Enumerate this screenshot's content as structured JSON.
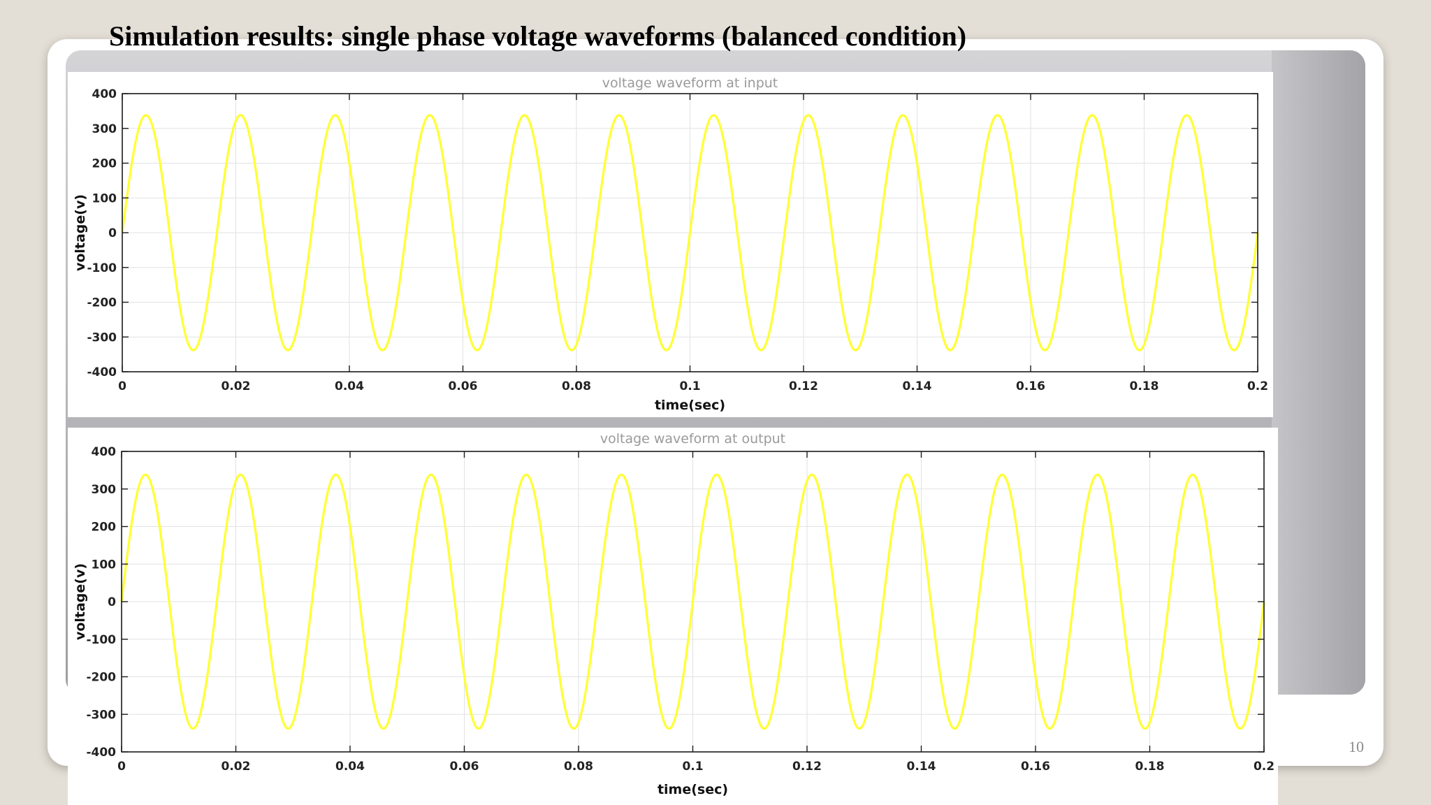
{
  "slide": {
    "title": "Simulation results: single phase voltage waveforms (balanced condition)",
    "page_number": "10"
  },
  "colors": {
    "waveform": "#ffff33",
    "grid": "#e2e2e2",
    "axes": "#1a1a1a"
  },
  "chart_data": [
    {
      "type": "line",
      "title": "voltage waveform at input",
      "xlabel": "time(sec)",
      "ylabel": "voltage(v)",
      "xlim": [
        0,
        0.2
      ],
      "ylim": [
        -400,
        400
      ],
      "x_ticks": [
        0,
        0.02,
        0.04,
        0.06,
        0.08,
        0.1,
        0.12,
        0.14,
        0.16,
        0.18,
        0.2
      ],
      "x_tick_labels": [
        "0",
        "0.02",
        "0.04",
        "0.06",
        "0.08",
        "0.1",
        "0.12",
        "0.14",
        "0.16",
        "0.18",
        "0.2"
      ],
      "y_ticks": [
        400,
        300,
        200,
        100,
        0,
        -100,
        -200,
        -300,
        -400
      ],
      "y_tick_labels": [
        "400",
        "300",
        "200",
        "100",
        "0",
        "-100",
        "-200",
        "-300",
        "-400"
      ],
      "grid": true,
      "series": [
        {
          "amplitude": 338,
          "frequency_hz": 60,
          "phase_deg": 0,
          "color": "#ffff33"
        }
      ]
    },
    {
      "type": "line",
      "title": "voltage waveform at output",
      "xlabel": "time(sec)",
      "ylabel": "voltage(v)",
      "xlim": [
        0,
        0.2
      ],
      "ylim": [
        -400,
        400
      ],
      "x_ticks": [
        0,
        0.02,
        0.04,
        0.06,
        0.08,
        0.1,
        0.12,
        0.14,
        0.16,
        0.18,
        0.2
      ],
      "x_tick_labels": [
        "0",
        "0.02",
        "0.04",
        "0.06",
        "0.08",
        "0.1",
        "0.12",
        "0.14",
        "0.16",
        "0.18",
        "0.2"
      ],
      "y_ticks": [
        400,
        300,
        200,
        100,
        0,
        -100,
        -200,
        -300,
        -400
      ],
      "y_tick_labels": [
        "400",
        "300",
        "200",
        "100",
        "0",
        "-100",
        "-200",
        "-300",
        "-400"
      ],
      "grid": true,
      "series": [
        {
          "amplitude": 338,
          "frequency_hz": 60,
          "phase_deg": 0,
          "color": "#ffff33"
        }
      ]
    }
  ]
}
